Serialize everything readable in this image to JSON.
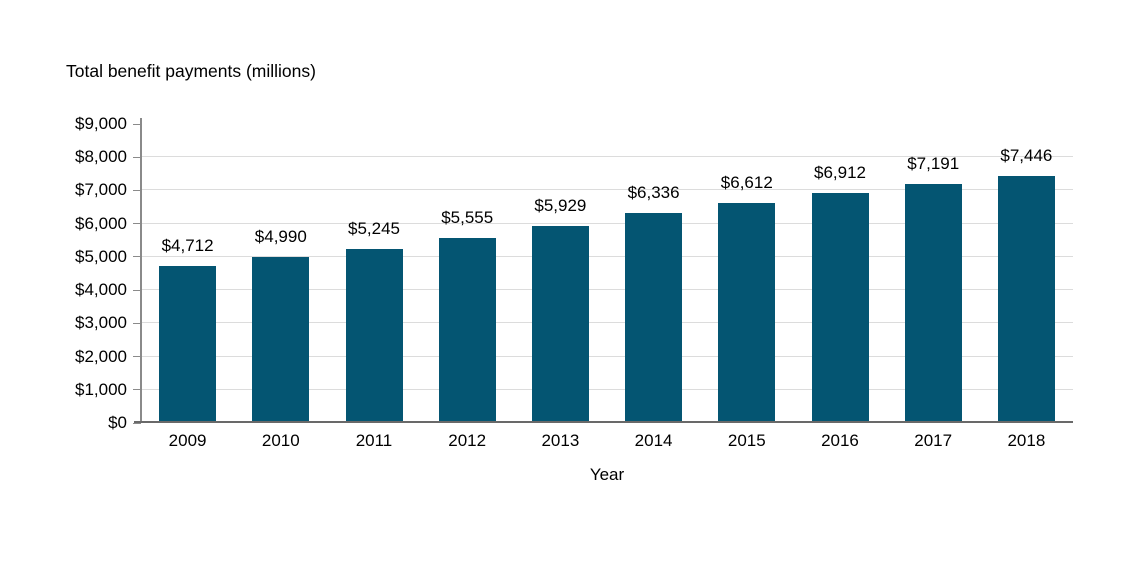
{
  "chart_data": {
    "type": "bar",
    "title": "Total benefit payments (millions)",
    "xlabel": "Year",
    "ylabel": "Total benefit payments (millions)",
    "categories": [
      "2009",
      "2010",
      "2011",
      "2012",
      "2013",
      "2014",
      "2015",
      "2016",
      "2017",
      "2018"
    ],
    "values": [
      4712,
      4990,
      5245,
      5555,
      5929,
      6336,
      6612,
      6912,
      7191,
      7446
    ],
    "value_labels": [
      "$4,712",
      "$4,990",
      "$5,245",
      "$5,555",
      "$5,929",
      "$6,336",
      "$6,612",
      "$6,912",
      "$7,191",
      "$7,446"
    ],
    "ylim": [
      0,
      9000
    ],
    "ytick_interval": 1000,
    "ytick_labels": [
      "$0",
      "$1,000",
      "$2,000",
      "$3,000",
      "$4,000",
      "$5,000",
      "$6,000",
      "$7,000",
      "$8,000",
      "$9,000"
    ],
    "grid": "horizontal",
    "legend": "none",
    "colors": {
      "bar": "#045572",
      "gridline": "#DCDCDC",
      "axis_line": "#8A8A8A",
      "x_axis_line": "#696969",
      "text": "#000000",
      "background": "#FFFFFF"
    }
  }
}
